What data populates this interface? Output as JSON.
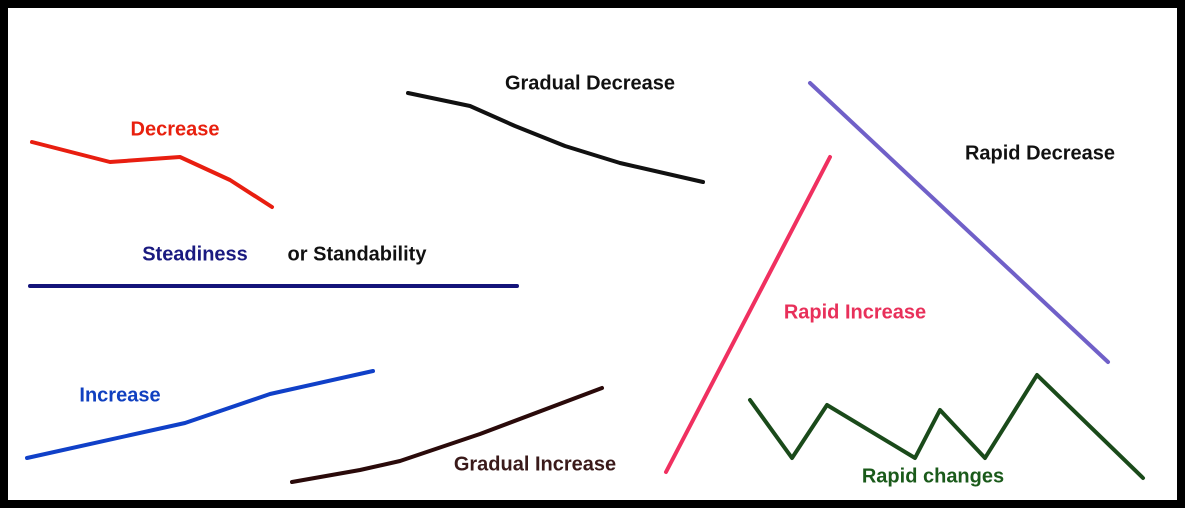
{
  "labels": {
    "decrease": "Decrease",
    "gradual_decrease": "Gradual Decrease",
    "rapid_decrease": "Rapid Decrease",
    "steadiness": "Steadiness",
    "standability": "or Standability",
    "rapid_increase": "Rapid Increase",
    "increase": "Increase",
    "gradual_increase": "Gradual Increase",
    "rapid_changes": "Rapid changes"
  }
}
